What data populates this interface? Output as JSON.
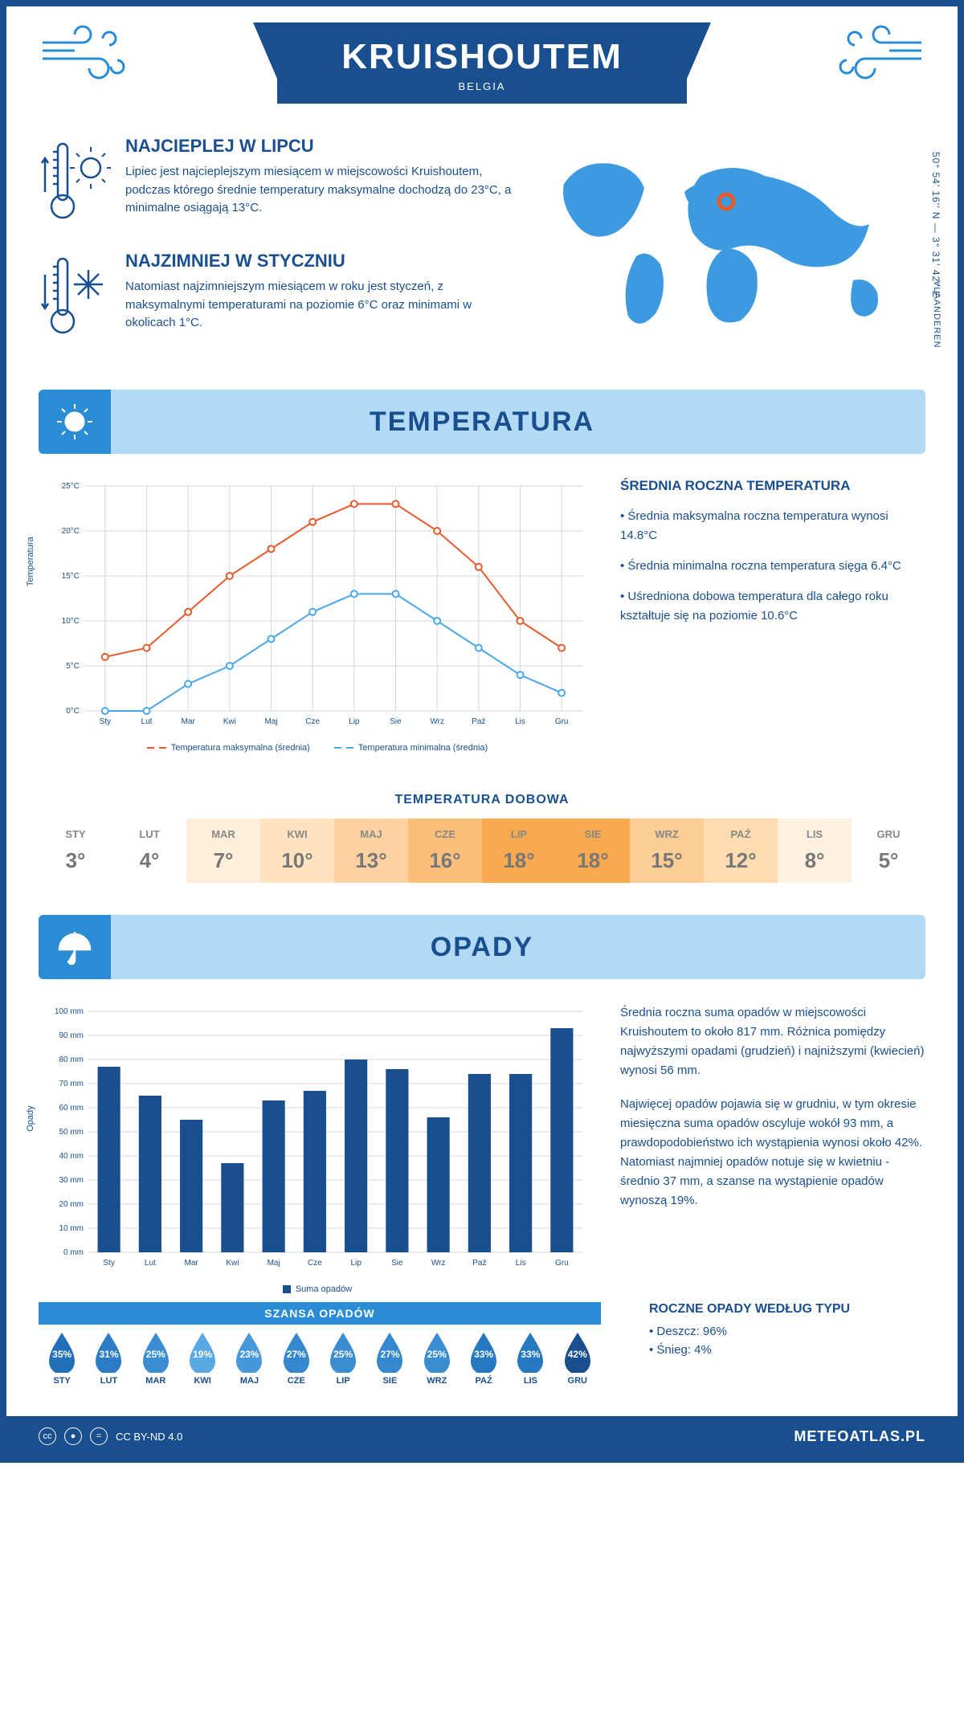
{
  "header": {
    "title": "KRUISHOUTEM",
    "subtitle": "BELGIA"
  },
  "coords": "50° 54' 16'' N — 3° 31' 42'' E",
  "region": "VLAANDEREN",
  "facts": {
    "hot": {
      "title": "NAJCIEPLEJ W LIPCU",
      "text": "Lipiec jest najcieplejszym miesiącem w miejscowości Kruishoutem, podczas którego średnie temperatury maksymalne dochodzą do 23°C, a minimalne osiągają 13°C."
    },
    "cold": {
      "title": "NAJZIMNIEJ W STYCZNIU",
      "text": "Natomiast najzimniejszym miesiącem w roku jest styczeń, z maksymalnymi temperaturami na poziomie 6°C oraz minimami w okolicach 1°C."
    }
  },
  "sections": {
    "temp": "TEMPERATURA",
    "precip": "OPADY"
  },
  "months": [
    "Sty",
    "Lut",
    "Mar",
    "Kwi",
    "Maj",
    "Cze",
    "Lip",
    "Sie",
    "Wrz",
    "Paź",
    "Lis",
    "Gru"
  ],
  "months_upper": [
    "STY",
    "LUT",
    "MAR",
    "KWI",
    "MAJ",
    "CZE",
    "LIP",
    "SIE",
    "WRZ",
    "PAŹ",
    "LIS",
    "GRU"
  ],
  "temp_chart": {
    "type": "line",
    "ylabel": "Temperatura",
    "ylim": [
      0,
      25
    ],
    "ytick_step": 5,
    "ytick_labels": [
      "0°C",
      "5°C",
      "10°C",
      "15°C",
      "20°C",
      "25°C"
    ],
    "series": {
      "max": {
        "label": "Temperatura maksymalna (średnia)",
        "color": "#e85a2c",
        "values": [
          6,
          7,
          11,
          15,
          18,
          21,
          23,
          23,
          20,
          16,
          10,
          7
        ]
      },
      "min": {
        "label": "Temperatura minimalna (średnia)",
        "color": "#4ba8e8",
        "values": [
          0,
          0,
          3,
          5,
          8,
          11,
          13,
          13,
          10,
          7,
          4,
          2
        ]
      }
    },
    "grid_color": "#d0d8e0",
    "background_color": "#ffffff"
  },
  "temp_side": {
    "title": "ŚREDNIA ROCZNA TEMPERATURA",
    "lines": [
      "• Średnia maksymalna roczna temperatura wynosi 14.8°C",
      "• Średnia minimalna roczna temperatura sięga 6.4°C",
      "• Uśredniona dobowa temperatura dla całego roku kształtuje się na poziomie 10.6°C"
    ]
  },
  "daily_temp": {
    "title": "TEMPERATURA DOBOWA",
    "values": [
      "3°",
      "4°",
      "7°",
      "10°",
      "13°",
      "16°",
      "18°",
      "18°",
      "15°",
      "12°",
      "8°",
      "5°"
    ],
    "colors": [
      "#ffffff",
      "#ffffff",
      "#ffeeda",
      "#ffe3c0",
      "#fdd2a0",
      "#fbbf7a",
      "#f9a94f",
      "#f9a94f",
      "#fccd94",
      "#fedcb0",
      "#fff1e0",
      "#ffffff"
    ]
  },
  "precip_chart": {
    "type": "bar",
    "ylabel": "Opady",
    "ylim": [
      0,
      100
    ],
    "ytick_step": 10,
    "ytick_labels": [
      "0 mm",
      "10 mm",
      "20 mm",
      "30 mm",
      "40 mm",
      "50 mm",
      "60 mm",
      "70 mm",
      "80 mm",
      "90 mm",
      "100 mm"
    ],
    "values": [
      77,
      65,
      55,
      37,
      63,
      67,
      80,
      76,
      56,
      74,
      74,
      93
    ],
    "bar_color": "#194f8e",
    "legend": "Suma opadów",
    "grid_color": "#d0d8e0"
  },
  "precip_side": {
    "p1": "Średnia roczna suma opadów w miejscowości Kruishoutem to około 817 mm. Różnica pomiędzy najwyższymi opadami (grudzień) i najniższymi (kwiecień) wynosi 56 mm.",
    "p2": "Najwięcej opadów pojawia się w grudniu, w tym okresie miesięczna suma opadów oscyluje wokół 93 mm, a prawdopodobieństwo ich wystąpienia wynosi około 42%. Natomiast najmniej opadów notuje się w kwietniu - średnio 37 mm, a szanse na wystąpienie opadów wynoszą 19%."
  },
  "chance": {
    "title": "SZANSA OPADÓW",
    "values": [
      "35%",
      "31%",
      "25%",
      "19%",
      "23%",
      "27%",
      "25%",
      "27%",
      "25%",
      "33%",
      "33%",
      "42%"
    ],
    "colors": [
      "#2370b8",
      "#2b7cc4",
      "#3b8dd2",
      "#5aa8e4",
      "#4698da",
      "#3688ce",
      "#3b8dd2",
      "#3688ce",
      "#3b8dd2",
      "#2678c0",
      "#2678c0",
      "#194f8e"
    ]
  },
  "precip_type": {
    "title": "ROCZNE OPADY WEDŁUG TYPU",
    "lines": [
      "• Deszcz: 96%",
      "• Śnieg: 4%"
    ]
  },
  "footer": {
    "license": "CC BY-ND 4.0",
    "site": "METEOATLAS.PL"
  }
}
